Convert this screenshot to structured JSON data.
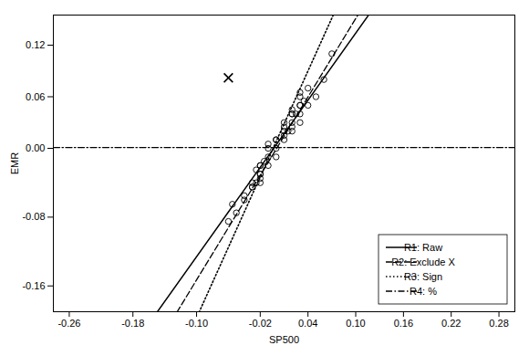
{
  "chart_data": {
    "type": "scatter",
    "xlabel": "SP500",
    "ylabel": "EMR",
    "xlim": [
      -0.28,
      0.3
    ],
    "ylim": [
      -0.19,
      0.155
    ],
    "xticks": [
      -0.26,
      -0.18,
      {
        "value": -0.1,
        "label": "-0.10"
      },
      -0.02,
      0.04,
      {
        "value": 0.1,
        "label": "0.10"
      },
      0.16,
      0.22,
      0.28
    ],
    "yticks": [
      -0.16,
      -0.08,
      {
        "value": 0,
        "label": "0.00"
      },
      0.06,
      0.12
    ],
    "grid": false,
    "legend": "lower right",
    "color": "#000000",
    "points": {
      "marker": "circle",
      "x": [
        -0.025,
        -0.02,
        -0.02,
        -0.03,
        -0.04,
        -0.055,
        -0.03,
        -0.02,
        -0.01,
        -0.01,
        0.0,
        0.0,
        0.01,
        0.01,
        0.02,
        0.02,
        0.02,
        0.03,
        0.03,
        0.03,
        0.04,
        0.04,
        0.05,
        0.06,
        0.07,
        -0.02,
        -0.03,
        -0.04,
        -0.05,
        -0.06,
        0.0,
        -0.01,
        0.01,
        0.02,
        0.03,
        -0.02,
        0.01,
        0.0,
        -0.01,
        0.02,
        0.03,
        -0.02,
        0.01,
        0.02,
        0.03,
        0.025,
        0.035,
        -0.025,
        -0.015,
        0.015
      ],
      "y": [
        -0.025,
        -0.04,
        -0.02,
        -0.04,
        -0.055,
        -0.065,
        -0.045,
        -0.03,
        -0.01,
        -0.02,
        -0.01,
        0.01,
        0.01,
        0.03,
        0.03,
        0.04,
        0.02,
        0.04,
        0.05,
        0.03,
        0.05,
        0.07,
        0.06,
        0.08,
        0.11,
        -0.03,
        -0.045,
        -0.06,
        -0.075,
        -0.085,
        0.0,
        0.0,
        0.015,
        0.025,
        0.05,
        -0.02,
        0.02,
        0.01,
        0.005,
        0.04,
        0.06,
        -0.035,
        0.025,
        0.045,
        0.065,
        0.04,
        0.055,
        -0.04,
        -0.015,
        0.02
      ]
    },
    "outlier": {
      "x": -0.06,
      "y": 0.082,
      "marker": "x"
    },
    "series": [
      {
        "name": "R1: Raw",
        "type": "line",
        "slope": 1.3,
        "intercept": 0.004,
        "line_style": "solid"
      },
      {
        "name": "R2: Exclude X",
        "type": "line",
        "slope": 1.52,
        "intercept": -0.001,
        "line_style": "dashed"
      },
      {
        "name": "R3: Sign",
        "type": "line",
        "slope": 2.05,
        "intercept": 0.008,
        "line_style": "dotted"
      },
      {
        "name": "R4: %",
        "type": "line",
        "y": 0.001,
        "line_style": "dashdot"
      }
    ]
  }
}
